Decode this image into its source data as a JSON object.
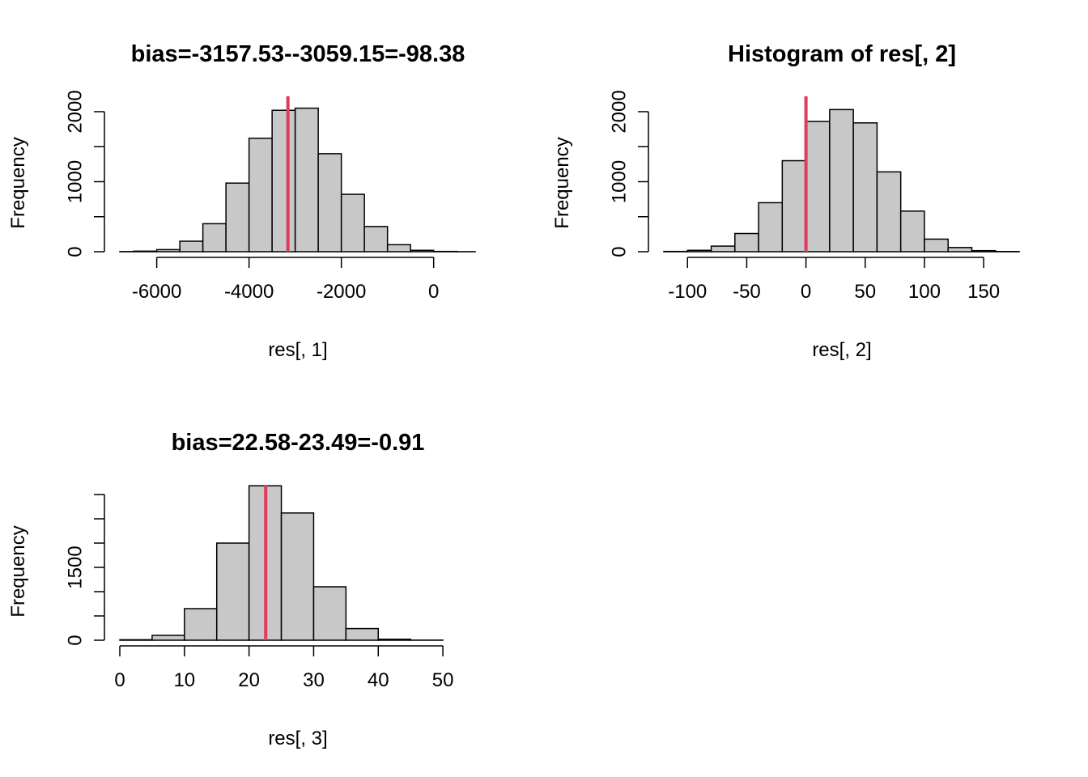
{
  "colors": {
    "bar_fill": "#c8c8c8",
    "bar_stroke": "#000000",
    "vline": "#df3b5a",
    "axis": "#000000"
  },
  "chart_data": [
    {
      "type": "bar",
      "title": "bias=-3157.53--3059.15=-98.38",
      "xlabel": "res[, 1]",
      "ylabel": "Frequency",
      "xlim": [
        -6800,
        900
      ],
      "ylim": [
        0,
        2150
      ],
      "x_ticks": [
        -6000,
        -4000,
        -2000,
        0
      ],
      "x_tick_labels": [
        "-6000",
        "-4000",
        "-2000",
        "0"
      ],
      "y_ticks": [
        0,
        500,
        1000,
        1500,
        2000
      ],
      "y_tick_labels": [
        "0",
        "",
        "1000",
        "",
        "2000"
      ],
      "bin_edges": [
        -7000,
        -6500,
        -6000,
        -5500,
        -5000,
        -4500,
        -4000,
        -3500,
        -3000,
        -2500,
        -2000,
        -1500,
        -1000,
        -500,
        0,
        500,
        1000
      ],
      "values": [
        2,
        8,
        30,
        150,
        400,
        980,
        1620,
        2020,
        2050,
        1400,
        820,
        360,
        100,
        20,
        4,
        1
      ],
      "vline": -3157.53,
      "grid": false
    },
    {
      "type": "bar",
      "title": "Histogram of res[, 2]",
      "xlabel": "res[, 2]",
      "ylabel": "Frequency",
      "xlim": [
        -120,
        180
      ],
      "ylim": [
        0,
        2150
      ],
      "x_ticks": [
        -100,
        -50,
        0,
        50,
        100,
        150
      ],
      "x_tick_labels": [
        "-100",
        "-50",
        "0",
        "50",
        "100",
        "150"
      ],
      "y_ticks": [
        0,
        500,
        1000,
        1500,
        2000
      ],
      "y_tick_labels": [
        "0",
        "",
        "1000",
        "",
        "2000"
      ],
      "bin_edges": [
        -120,
        -100,
        -80,
        -60,
        -40,
        -20,
        0,
        20,
        40,
        60,
        80,
        100,
        120,
        140,
        160,
        180
      ],
      "values": [
        4,
        20,
        80,
        260,
        700,
        1300,
        1860,
        2030,
        1840,
        1140,
        580,
        180,
        60,
        15,
        3
      ],
      "vline": 0,
      "grid": false
    },
    {
      "type": "bar",
      "title": "bias=22.58-23.49=-0.91",
      "xlabel": "res[, 3]",
      "ylabel": "Frequency",
      "xlim": [
        0,
        55
      ],
      "ylim": [
        0,
        3100
      ],
      "x_ticks": [
        0,
        10,
        20,
        30,
        40,
        50
      ],
      "x_tick_labels": [
        "0",
        "10",
        "20",
        "30",
        "40",
        "50"
      ],
      "y_ticks": [
        0,
        500,
        1000,
        1500,
        2000,
        2500,
        3000
      ],
      "y_tick_labels": [
        "0",
        "",
        "",
        "1500",
        "",
        "",
        ""
      ],
      "bin_edges": [
        0,
        5,
        10,
        15,
        20,
        25,
        30,
        35,
        40,
        45,
        50
      ],
      "values": [
        10,
        100,
        650,
        2000,
        3180,
        2620,
        1100,
        240,
        20,
        2
      ],
      "vline": 22.58,
      "grid": false
    }
  ]
}
